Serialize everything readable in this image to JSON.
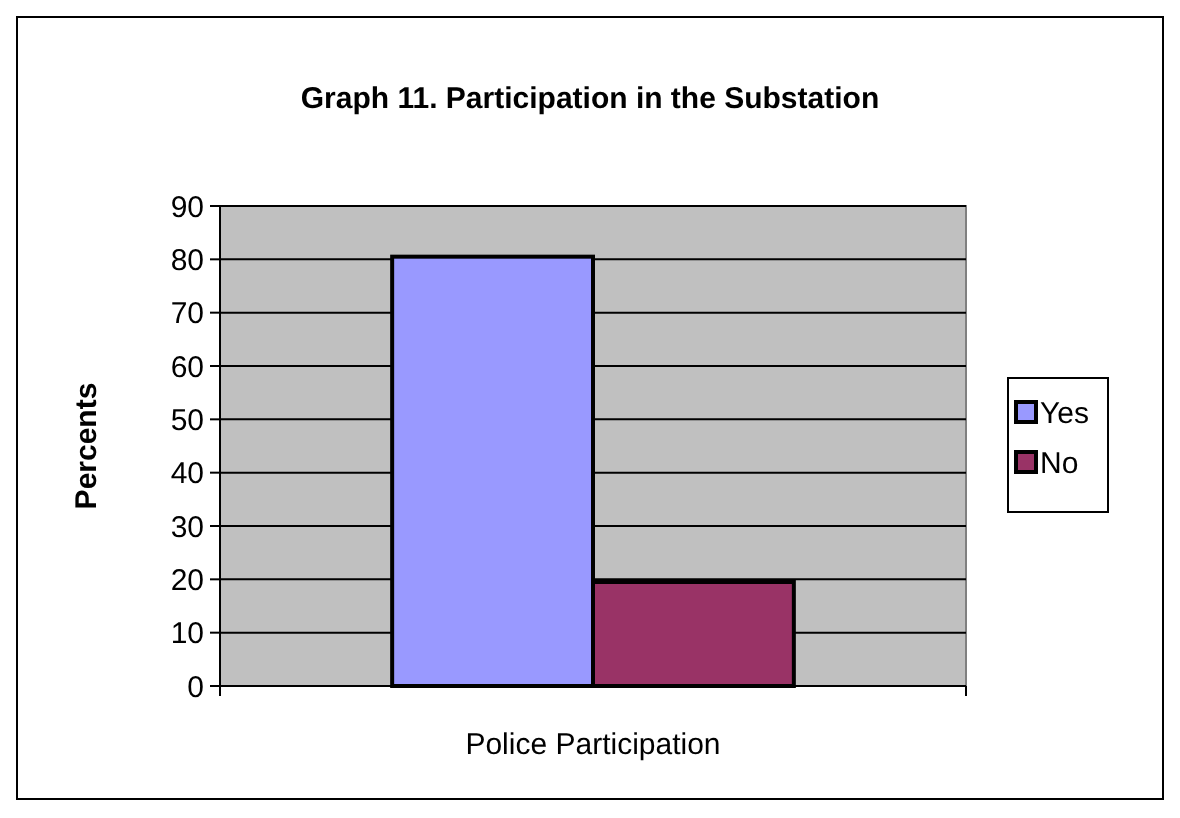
{
  "chart_data": {
    "type": "bar",
    "title": "Graph 11.  Participation in the Substation",
    "ylabel": "Percents",
    "categories": [
      "Police Participation"
    ],
    "series": [
      {
        "name": "Yes",
        "color": "#9999ff",
        "values": [
          80.5
        ]
      },
      {
        "name": "No",
        "color": "#993366",
        "values": [
          19.5
        ]
      }
    ],
    "ylim": [
      0,
      90
    ],
    "yticks": [
      0,
      10,
      20,
      30,
      40,
      50,
      60,
      70,
      80,
      90
    ],
    "grid": "y",
    "legend": "right"
  }
}
